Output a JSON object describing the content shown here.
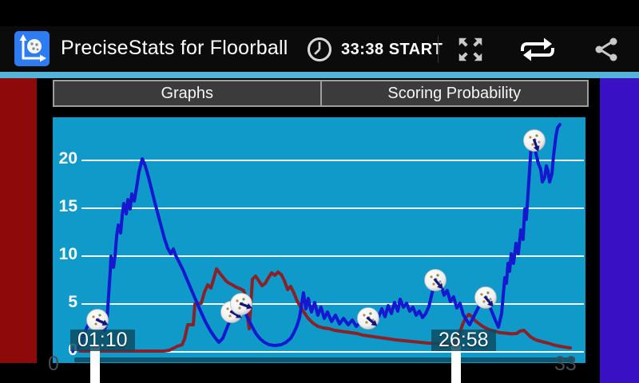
{
  "app": {
    "title": "PreciseStats for Floorball",
    "timer_text": "33:38 START"
  },
  "icons": {
    "app": "floorball-stats-axes-and-ball",
    "clock": "clock-outline",
    "expand": "fullscreen-four-arrows",
    "loop": "repeat-loop-arrows",
    "share": "share-three-dots"
  },
  "tabs": [
    {
      "label": "Graphs"
    },
    {
      "label": "Scoring Probability"
    }
  ],
  "colors": {
    "accent_strip": "#55b5d8",
    "chart_background": "#0f9aca",
    "gridline": "#eef8fb",
    "side_strip_left": "#8e0909",
    "side_strip_right": "#3a10c4",
    "series_blue": "#1518cf",
    "series_red": "#8a2028",
    "marker_chip_bg": "rgba(13,74,96,0.82)",
    "y_tick_text": "#ffffff",
    "x_end_text": "#474b52",
    "ball_arrow": "#15157f",
    "scrollbar": "rgba(8,22,28,0.5)"
  },
  "chart_data": {
    "type": "line",
    "title": "",
    "xlabel": "",
    "ylabel": "",
    "x_axis": {
      "min_label": "0",
      "max_label": "33",
      "range": [
        0,
        35.3
      ],
      "unit": "minutes"
    },
    "y_axis": {
      "ticks": [
        0,
        5,
        10,
        15,
        20
      ],
      "range": [
        0,
        24.5
      ]
    },
    "grid": "horizontal-only",
    "legend": "none",
    "series": [
      {
        "name": "home-intensity",
        "color": "#1518cf",
        "points": [
          [
            0,
            0
          ],
          [
            0.33,
            0.25
          ],
          [
            0.55,
            0.58
          ],
          [
            0.77,
            1.42
          ],
          [
            0.99,
            2.42
          ],
          [
            1.21,
            3.08
          ],
          [
            1.43,
            3.42
          ],
          [
            1.65,
            3.08
          ],
          [
            1.87,
            2.83
          ],
          [
            2.09,
            2.58
          ],
          [
            2.25,
            2.25
          ],
          [
            2.42,
            3.42
          ],
          [
            2.53,
            5.92
          ],
          [
            2.64,
            8.42
          ],
          [
            2.69,
            10
          ],
          [
            2.86,
            8.83
          ],
          [
            2.97,
            10.08
          ],
          [
            3.08,
            12.17
          ],
          [
            3.19,
            13.25
          ],
          [
            3.35,
            12.42
          ],
          [
            3.46,
            14.25
          ],
          [
            3.57,
            15.5
          ],
          [
            3.74,
            14.42
          ],
          [
            3.85,
            15.92
          ],
          [
            4.01,
            14.92
          ],
          [
            4.12,
            16.5
          ],
          [
            4.29,
            15.75
          ],
          [
            4.45,
            17.17
          ],
          [
            4.62,
            18.83
          ],
          [
            4.84,
            20.17
          ],
          [
            5.05,
            19.42
          ],
          [
            5.27,
            18.25
          ],
          [
            5.49,
            16.92
          ],
          [
            5.71,
            15.58
          ],
          [
            5.93,
            14.33
          ],
          [
            6.15,
            13.08
          ],
          [
            6.37,
            11.83
          ],
          [
            6.59,
            10.83
          ],
          [
            6.81,
            10.25
          ],
          [
            6.98,
            10.75
          ],
          [
            7.14,
            10.08
          ],
          [
            7.36,
            9.42
          ],
          [
            7.64,
            8.58
          ],
          [
            7.91,
            7.58
          ],
          [
            8.19,
            6.58
          ],
          [
            8.52,
            5.42
          ],
          [
            8.85,
            4.25
          ],
          [
            9.18,
            3.17
          ],
          [
            9.51,
            2.25
          ],
          [
            9.84,
            1.5
          ],
          [
            10.11,
            1
          ],
          [
            10.38,
            1.42
          ],
          [
            10.6,
            2.25
          ],
          [
            10.82,
            3.08
          ],
          [
            10.99,
            3.58
          ],
          [
            11.15,
            4
          ],
          [
            11.37,
            4.33
          ],
          [
            11.59,
            4.75
          ],
          [
            11.81,
            4.42
          ],
          [
            12.03,
            3.75
          ],
          [
            12.25,
            3.08
          ],
          [
            12.47,
            2.42
          ],
          [
            12.69,
            1.83
          ],
          [
            12.97,
            1.33
          ],
          [
            13.24,
            1
          ],
          [
            13.57,
            0.75
          ],
          [
            13.96,
            0.67
          ],
          [
            14.4,
            0.75
          ],
          [
            14.73,
            1
          ],
          [
            15.05,
            1.42
          ],
          [
            15.27,
            2
          ],
          [
            15.49,
            2.75
          ],
          [
            15.66,
            3.58
          ],
          [
            15.82,
            5.08
          ],
          [
            15.93,
            6.17
          ],
          [
            16.1,
            4.5
          ],
          [
            16.26,
            5.58
          ],
          [
            16.48,
            4.17
          ],
          [
            16.7,
            5.17
          ],
          [
            16.92,
            3.83
          ],
          [
            17.14,
            4.67
          ],
          [
            17.36,
            3.5
          ],
          [
            17.58,
            4.17
          ],
          [
            17.86,
            3.17
          ],
          [
            18.13,
            3.83
          ],
          [
            18.41,
            2.92
          ],
          [
            18.68,
            3.5
          ],
          [
            19.01,
            2.83
          ],
          [
            19.29,
            3.33
          ],
          [
            19.56,
            2.67
          ],
          [
            19.89,
            3.17
          ],
          [
            20.22,
            2.83
          ],
          [
            20.44,
            3.25
          ],
          [
            20.66,
            3.75
          ],
          [
            20.88,
            3.17
          ],
          [
            21.1,
            3.67
          ],
          [
            21.32,
            4.5
          ],
          [
            21.54,
            3.67
          ],
          [
            21.76,
            4.83
          ],
          [
            21.98,
            4
          ],
          [
            22.2,
            5.17
          ],
          [
            22.42,
            4.25
          ],
          [
            22.58,
            5.5
          ],
          [
            22.8,
            4.67
          ],
          [
            23.02,
            5.08
          ],
          [
            23.24,
            4.25
          ],
          [
            23.46,
            4.67
          ],
          [
            23.68,
            3.83
          ],
          [
            23.9,
            4.25
          ],
          [
            24.12,
            3.58
          ],
          [
            24.34,
            4
          ],
          [
            24.56,
            4.75
          ],
          [
            24.78,
            6.17
          ],
          [
            25,
            7.33
          ],
          [
            25.22,
            6.58
          ],
          [
            25.38,
            7.08
          ],
          [
            25.6,
            5.92
          ],
          [
            25.82,
            6.42
          ],
          [
            26.04,
            5.25
          ],
          [
            26.26,
            5.75
          ],
          [
            26.48,
            4.58
          ],
          [
            26.7,
            5.08
          ],
          [
            26.92,
            3.92
          ],
          [
            27.14,
            3.33
          ],
          [
            27.36,
            2.83
          ],
          [
            27.58,
            3.5
          ],
          [
            27.8,
            4.17
          ],
          [
            28.02,
            4.83
          ],
          [
            28.24,
            5.33
          ],
          [
            28.46,
            5.58
          ],
          [
            28.68,
            5
          ],
          [
            28.9,
            4.17
          ],
          [
            29.12,
            3.33
          ],
          [
            29.34,
            2.58
          ],
          [
            29.56,
            4
          ],
          [
            29.67,
            5.92
          ],
          [
            29.78,
            7.75
          ],
          [
            29.89,
            7.17
          ],
          [
            30,
            9.25
          ],
          [
            30.11,
            8.42
          ],
          [
            30.22,
            10.25
          ],
          [
            30.38,
            9.25
          ],
          [
            30.55,
            11.33
          ],
          [
            30.71,
            10.25
          ],
          [
            30.88,
            12.75
          ],
          [
            31.04,
            11.75
          ],
          [
            31.15,
            14.92
          ],
          [
            31.26,
            13.83
          ],
          [
            31.37,
            16.33
          ],
          [
            31.48,
            18.83
          ],
          [
            31.59,
            21.33
          ],
          [
            31.7,
            22.42
          ],
          [
            31.81,
            21.75
          ],
          [
            31.92,
            20.75
          ],
          [
            32.09,
            19.67
          ],
          [
            32.25,
            19.08
          ],
          [
            32.36,
            17.75
          ],
          [
            32.53,
            18.25
          ],
          [
            32.64,
            19.42
          ],
          [
            32.75,
            18.92
          ],
          [
            32.86,
            17.75
          ],
          [
            33.02,
            18.58
          ],
          [
            33.13,
            20.5
          ],
          [
            33.3,
            22.58
          ],
          [
            33.41,
            23.42
          ],
          [
            33.57,
            23.75
          ]
        ]
      },
      {
        "name": "away-intensity",
        "color": "#8a2028",
        "points": [
          [
            0.55,
            0.08
          ],
          [
            1.37,
            0.08
          ],
          [
            2.2,
            0.08
          ],
          [
            3.02,
            0.08
          ],
          [
            3.85,
            0.08
          ],
          [
            4.67,
            0.08
          ],
          [
            5.49,
            0.08
          ],
          [
            6.32,
            0.08
          ],
          [
            6.7,
            0.17
          ],
          [
            6.92,
            0.33
          ],
          [
            7.25,
            0.58
          ],
          [
            7.58,
            0.75
          ],
          [
            7.75,
            1.33
          ],
          [
            7.97,
            2.83
          ],
          [
            8.35,
            2.83
          ],
          [
            8.46,
            5
          ],
          [
            8.9,
            5.08
          ],
          [
            9.12,
            6.25
          ],
          [
            9.34,
            7
          ],
          [
            9.56,
            6.67
          ],
          [
            9.73,
            7.5
          ],
          [
            9.95,
            8.67
          ],
          [
            10.16,
            8.25
          ],
          [
            10.38,
            7.83
          ],
          [
            10.6,
            7.42
          ],
          [
            10.82,
            7.17
          ],
          [
            11.04,
            7
          ],
          [
            11.32,
            6.75
          ],
          [
            11.59,
            6.58
          ],
          [
            11.81,
            6.42
          ],
          [
            11.98,
            5.75
          ],
          [
            12.09,
            3.58
          ],
          [
            12.2,
            2.42
          ],
          [
            12.31,
            4.92
          ],
          [
            12.42,
            7.58
          ],
          [
            12.64,
            7.92
          ],
          [
            12.86,
            7.42
          ],
          [
            13.08,
            6.92
          ],
          [
            13.3,
            7.17
          ],
          [
            13.52,
            7.75
          ],
          [
            13.74,
            8.25
          ],
          [
            13.96,
            8
          ],
          [
            14.18,
            8.33
          ],
          [
            14.4,
            8.08
          ],
          [
            14.62,
            7.42
          ],
          [
            14.84,
            6.5
          ],
          [
            15.05,
            6.83
          ],
          [
            15.27,
            6.17
          ],
          [
            15.49,
            5.33
          ],
          [
            15.71,
            4.75
          ],
          [
            15.99,
            4.08
          ],
          [
            16.26,
            3.5
          ],
          [
            16.59,
            3
          ],
          [
            16.92,
            2.67
          ],
          [
            17.31,
            2.5
          ],
          [
            17.69,
            2.42
          ],
          [
            18.08,
            2.25
          ],
          [
            18.46,
            2.17
          ],
          [
            18.85,
            2.08
          ],
          [
            19.23,
            2
          ],
          [
            19.62,
            1.92
          ],
          [
            20,
            1.75
          ],
          [
            20.38,
            1.67
          ],
          [
            20.77,
            1.58
          ],
          [
            21.15,
            1.5
          ],
          [
            21.54,
            1.42
          ],
          [
            21.92,
            1.33
          ],
          [
            22.31,
            1.25
          ],
          [
            22.86,
            1.17
          ],
          [
            23.41,
            1.08
          ],
          [
            23.96,
            1
          ],
          [
            24.51,
            0.92
          ],
          [
            25.05,
            0.88
          ],
          [
            25.6,
            0.83
          ],
          [
            26.04,
            0.75
          ],
          [
            26.37,
            0.79
          ],
          [
            26.43,
            1.17
          ],
          [
            26.65,
            1.83
          ],
          [
            26.87,
            2.83
          ],
          [
            27.09,
            3.58
          ],
          [
            27.31,
            3.92
          ],
          [
            27.53,
            3.67
          ],
          [
            27.75,
            3.25
          ],
          [
            28.02,
            2.92
          ],
          [
            28.35,
            2.58
          ],
          [
            28.68,
            2.33
          ],
          [
            29.07,
            2.17
          ],
          [
            29.45,
            2
          ],
          [
            29.84,
            1.96
          ],
          [
            30.22,
            1.88
          ],
          [
            30.6,
            1.92
          ],
          [
            30.82,
            2.17
          ],
          [
            31.1,
            2.25
          ],
          [
            31.32,
            1.92
          ],
          [
            31.54,
            1.58
          ],
          [
            31.81,
            1.33
          ],
          [
            32.09,
            1.17
          ],
          [
            32.42,
            1.04
          ],
          [
            32.75,
            0.92
          ],
          [
            33.08,
            0.75
          ],
          [
            33.41,
            0.63
          ],
          [
            33.74,
            0.54
          ],
          [
            34.07,
            0.46
          ],
          [
            34.29,
            0.42
          ]
        ]
      }
    ],
    "events": [
      {
        "type": "goal-ball",
        "minute": 1.76,
        "value": 3.33,
        "arrow_deg": 25
      },
      {
        "type": "goal-ball",
        "minute": 10.99,
        "value": 4.17,
        "arrow_deg": 30
      },
      {
        "type": "goal-ball",
        "minute": 11.65,
        "value": 5.0,
        "arrow_deg": 20
      },
      {
        "type": "goal-ball",
        "minute": 20.38,
        "value": 3.5,
        "arrow_deg": 40
      },
      {
        "type": "goal-ball",
        "minute": 25.0,
        "value": 7.5,
        "arrow_deg": 50
      },
      {
        "type": "goal-ball",
        "minute": 28.46,
        "value": 5.67,
        "arrow_deg": 50
      },
      {
        "type": "goal-ball",
        "minute": 31.81,
        "value": 22.08,
        "arrow_deg": 70
      }
    ],
    "markers": [
      {
        "time": "01:10",
        "minute": 1.6
      },
      {
        "time": "26:58",
        "minute": 26.43
      }
    ]
  }
}
